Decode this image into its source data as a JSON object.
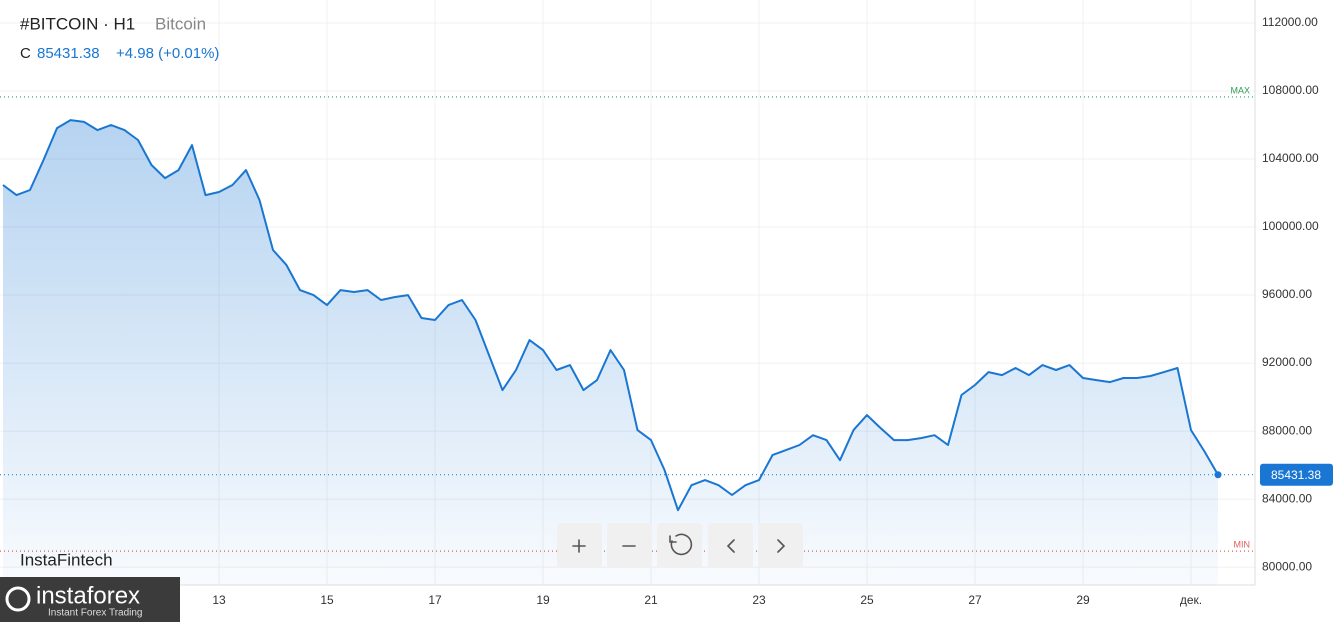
{
  "chart_data": {
    "type": "area",
    "title": "#BITCOIN · H1",
    "subtitle": "Bitcoin",
    "ohlc_label": "C",
    "change": "+4.98 (+0.01%)",
    "categories": [
      null,
      null,
      null,
      null,
      null,
      null,
      null,
      null,
      null,
      null,
      null,
      null,
      null,
      null,
      null,
      null,
      "13",
      null,
      null,
      null,
      null,
      null,
      null,
      null,
      "15",
      null,
      null,
      null,
      null,
      null,
      null,
      null,
      "17",
      null,
      null,
      null,
      null,
      null,
      null,
      null,
      "19",
      null,
      null,
      null,
      null,
      null,
      null,
      null,
      "21",
      null,
      null,
      null,
      null,
      null,
      null,
      null,
      "23",
      null,
      null,
      null,
      null,
      null,
      null,
      null,
      "25",
      null,
      null,
      null,
      null,
      null,
      null,
      null,
      "27",
      null,
      null,
      null,
      null,
      null,
      null,
      null,
      "29",
      null,
      null,
      null,
      null,
      null,
      null,
      null,
      "дек.",
      null,
      null
    ],
    "series": [
      {
        "name": "Bitcoin",
        "color": "#1976d2",
        "values": [
          102470,
          101880,
          102180,
          103940,
          105820,
          106290,
          106180,
          105700,
          106000,
          105700,
          105120,
          103650,
          102880,
          103350,
          104820,
          101880,
          102060,
          102470,
          103350,
          101590,
          98650,
          97760,
          96290,
          96000,
          95410,
          96290,
          96180,
          96290,
          95710,
          95880,
          96000,
          94650,
          94530,
          95410,
          95710,
          94530,
          92470,
          90410,
          91590,
          93350,
          92760,
          91590,
          91880,
          90410,
          91000,
          92760,
          91590,
          88060,
          87470,
          85710,
          83350,
          84820,
          85120,
          84820,
          84240,
          84820,
          85120,
          86590,
          86880,
          87180,
          87760,
          87470,
          86290,
          88060,
          88940,
          88180,
          87470,
          87470,
          87590,
          87760,
          87180,
          90120,
          90710,
          91470,
          91290,
          91710,
          91290,
          91880,
          91590,
          91880,
          91120,
          91000,
          90880,
          91120,
          91120,
          91240,
          91470,
          91710,
          88060,
          86800,
          85431.38
        ]
      }
    ],
    "ylim": [
      78950,
      113350
    ],
    "yticks": [
      {
        "value": 80000,
        "label": "80000.00"
      },
      {
        "value": 84000,
        "label": "84000.00"
      },
      {
        "value": 88000,
        "label": "88000.00"
      },
      {
        "value": 92000,
        "label": "92000.00"
      },
      {
        "value": 96000,
        "label": "96000.00"
      },
      {
        "value": 100000,
        "label": "100000.00"
      },
      {
        "value": 104000,
        "label": "104000.00"
      },
      {
        "value": 108000,
        "label": "108000.00"
      },
      {
        "value": 112000,
        "label": "112000.00"
      }
    ],
    "max_line": {
      "label": "MAX",
      "value": 107650,
      "color": "#2e9e5b"
    },
    "min_line": {
      "label": "MIN",
      "value": 80940,
      "color": "#e0605a"
    },
    "grid": true
  },
  "branding": {
    "watermark": "InstaFintech",
    "logo": "instaforex",
    "tagline": "Instant Forex Trading"
  }
}
